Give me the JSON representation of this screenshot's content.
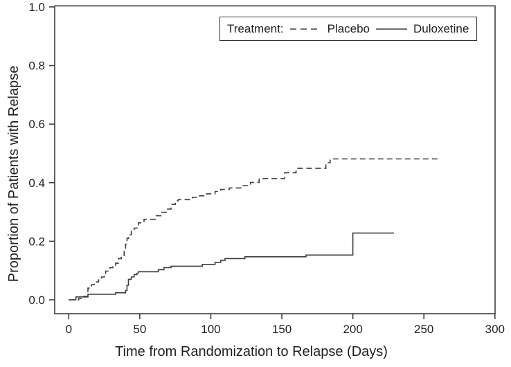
{
  "chart_data": {
    "type": "line",
    "subtype": "step-cumulative-incidence",
    "title": "",
    "xlabel": "Time from Randomization to Relapse (Days)",
    "ylabel": "Proportion of Patients with Relapse",
    "xlim": [
      0,
      300
    ],
    "ylim": [
      0,
      1
    ],
    "x_ticks": [
      0,
      50,
      100,
      150,
      200,
      250,
      300
    ],
    "y_ticks": [
      {
        "v": 0.0,
        "label": "0.0"
      },
      {
        "v": 0.2,
        "label": "0.2"
      },
      {
        "v": 0.4,
        "label": "0.4"
      },
      {
        "v": 0.6,
        "label": "0.6"
      },
      {
        "v": 0.8,
        "label": "0.8"
      },
      {
        "v": 1.0,
        "label": "1.0"
      }
    ],
    "grid": false,
    "line_color": "#3d3d3d",
    "legend": {
      "title": "Treatment:",
      "position": "top-center-inside",
      "entries": [
        {
          "label": "Placebo",
          "style": "dashed"
        },
        {
          "label": "Duloxetine",
          "style": "solid"
        }
      ]
    },
    "series": [
      {
        "name": "Placebo",
        "line": "dashed",
        "color": "#3d3d3d",
        "end_x": 260,
        "points": [
          [
            0,
            0
          ],
          [
            7,
            0.005
          ],
          [
            10,
            0.012
          ],
          [
            13.5,
            0.04
          ],
          [
            16,
            0.052
          ],
          [
            18,
            0.061
          ],
          [
            21,
            0.068
          ],
          [
            23,
            0.078
          ],
          [
            25,
            0.09
          ],
          [
            26,
            0.098
          ],
          [
            29,
            0.11
          ],
          [
            31,
            0.118
          ],
          [
            33,
            0.125
          ],
          [
            35,
            0.141
          ],
          [
            37,
            0.151
          ],
          [
            39,
            0.168
          ],
          [
            40,
            0.19
          ],
          [
            41,
            0.21
          ],
          [
            42,
            0.222
          ],
          [
            44,
            0.235
          ],
          [
            46,
            0.245
          ],
          [
            49,
            0.263
          ],
          [
            53,
            0.275
          ],
          [
            61,
            0.287
          ],
          [
            65,
            0.299
          ],
          [
            69,
            0.31
          ],
          [
            72,
            0.326
          ],
          [
            75,
            0.338
          ],
          [
            77,
            0.342
          ],
          [
            87,
            0.35
          ],
          [
            92,
            0.355
          ],
          [
            97,
            0.362
          ],
          [
            103,
            0.37
          ],
          [
            107,
            0.377
          ],
          [
            113,
            0.382
          ],
          [
            122,
            0.39
          ],
          [
            128,
            0.401
          ],
          [
            134,
            0.414
          ],
          [
            152,
            0.434
          ],
          [
            160,
            0.449
          ],
          [
            181,
            0.468
          ],
          [
            184,
            0.481
          ]
        ]
      },
      {
        "name": "Duloxetine",
        "line": "solid",
        "color": "#3d3d3d",
        "end_x": 229,
        "points": [
          [
            0,
            0
          ],
          [
            5,
            0.01
          ],
          [
            13.5,
            0.019
          ],
          [
            33,
            0.024
          ],
          [
            40,
            0.032
          ],
          [
            41,
            0.05
          ],
          [
            42,
            0.07
          ],
          [
            44,
            0.078
          ],
          [
            46,
            0.086
          ],
          [
            48,
            0.091
          ],
          [
            49,
            0.096
          ],
          [
            63,
            0.103
          ],
          [
            67,
            0.11
          ],
          [
            72,
            0.115
          ],
          [
            94,
            0.121
          ],
          [
            103,
            0.128
          ],
          [
            107,
            0.135
          ],
          [
            110,
            0.141
          ],
          [
            124,
            0.147
          ],
          [
            167,
            0.153
          ],
          [
            200,
            0.228
          ]
        ]
      }
    ]
  }
}
